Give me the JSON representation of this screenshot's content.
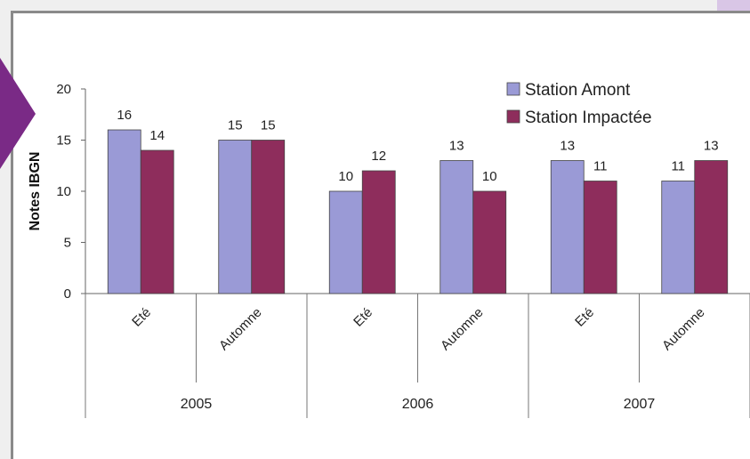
{
  "colors": {
    "series_amont": "#9a9ad6",
    "series_impactee": "#8e2d5c",
    "arrow": "#7a2a86"
  },
  "chart_data": {
    "type": "bar",
    "ylabel": "Notes IBGN",
    "ylim": [
      0,
      20
    ],
    "yticks": [
      "0",
      "5",
      "10",
      "15",
      "20"
    ],
    "groups": [
      {
        "year": "2005",
        "seasons": [
          "Eté",
          "Automne"
        ]
      },
      {
        "year": "2006",
        "seasons": [
          "Eté",
          "Automne"
        ]
      },
      {
        "year": "2007",
        "seasons": [
          "Eté",
          "Automne"
        ]
      }
    ],
    "categories": [
      "Eté",
      "Automne",
      "Eté",
      "Automne",
      "Eté",
      "Automne"
    ],
    "series": [
      {
        "name": "Station Amont",
        "values": [
          16,
          15,
          10,
          13,
          13,
          11
        ]
      },
      {
        "name": "Station Impactée",
        "values": [
          14,
          15,
          12,
          10,
          11,
          13
        ]
      }
    ],
    "legend_position": "top-right",
    "grid": false
  }
}
